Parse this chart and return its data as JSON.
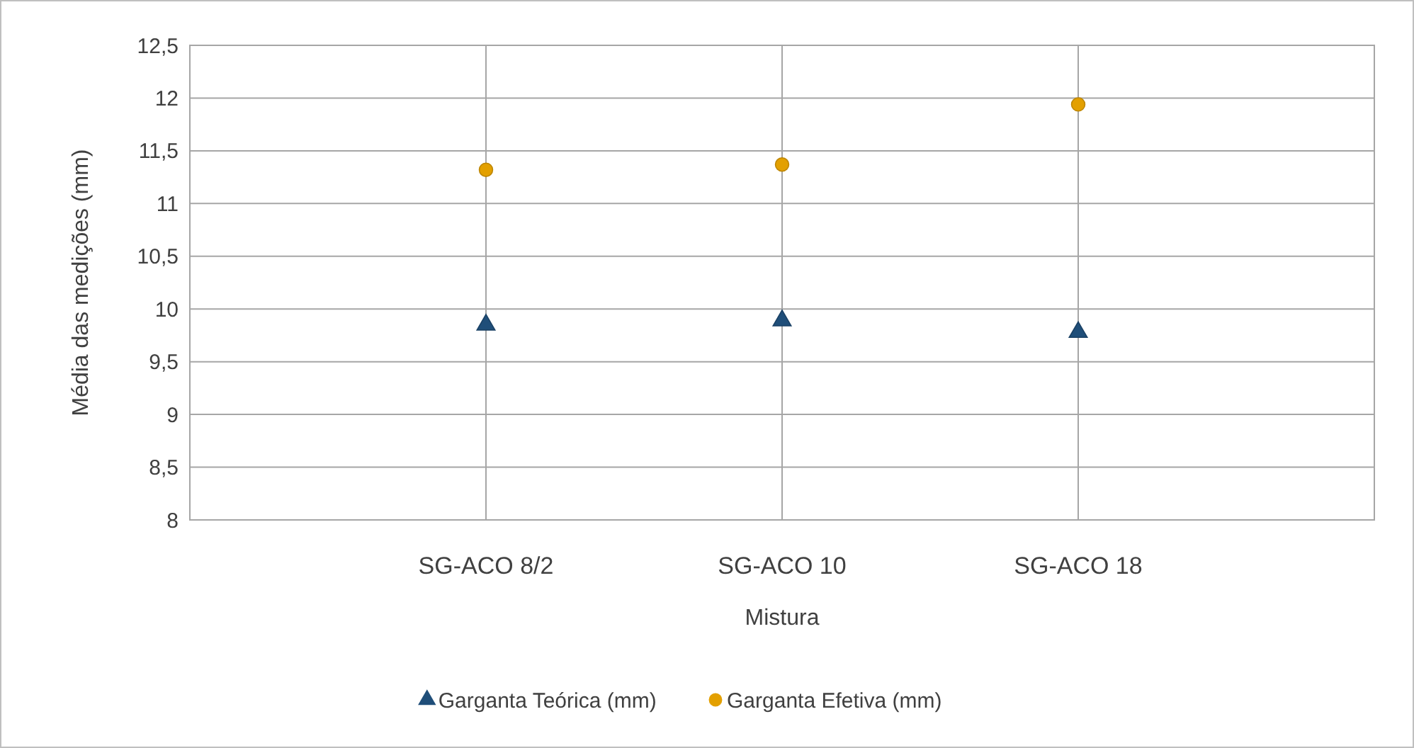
{
  "chart_data": {
    "type": "scatter",
    "xlabel": "Mistura",
    "ylabel": "Média das medições (mm)",
    "categories": [
      "SG-ACO 8/2",
      "SG-ACO 10",
      "SG-ACO 18"
    ],
    "series": [
      {
        "name": "Garganta Teórica (mm)",
        "color": "#1f4e79",
        "marker": "triangle",
        "values": [
          9.85,
          9.89,
          9.78
        ]
      },
      {
        "name": "Garganta Efetiva (mm)",
        "color": "#e3a000",
        "marker": "circle",
        "values": [
          11.32,
          11.37,
          11.94
        ]
      }
    ],
    "ylim": [
      8,
      12.5
    ],
    "yticks": [
      {
        "value": 8,
        "label": "8"
      },
      {
        "value": 8.5,
        "label": "8,5"
      },
      {
        "value": 9,
        "label": "9"
      },
      {
        "value": 9.5,
        "label": "9,5"
      },
      {
        "value": 10,
        "label": "10"
      },
      {
        "value": 10.5,
        "label": "10,5"
      },
      {
        "value": 11,
        "label": "11"
      },
      {
        "value": 11.5,
        "label": "11,5"
      },
      {
        "value": 12,
        "label": "12"
      },
      {
        "value": 12.5,
        "label": "12,5"
      }
    ],
    "grid": true,
    "legend": "bottom"
  }
}
